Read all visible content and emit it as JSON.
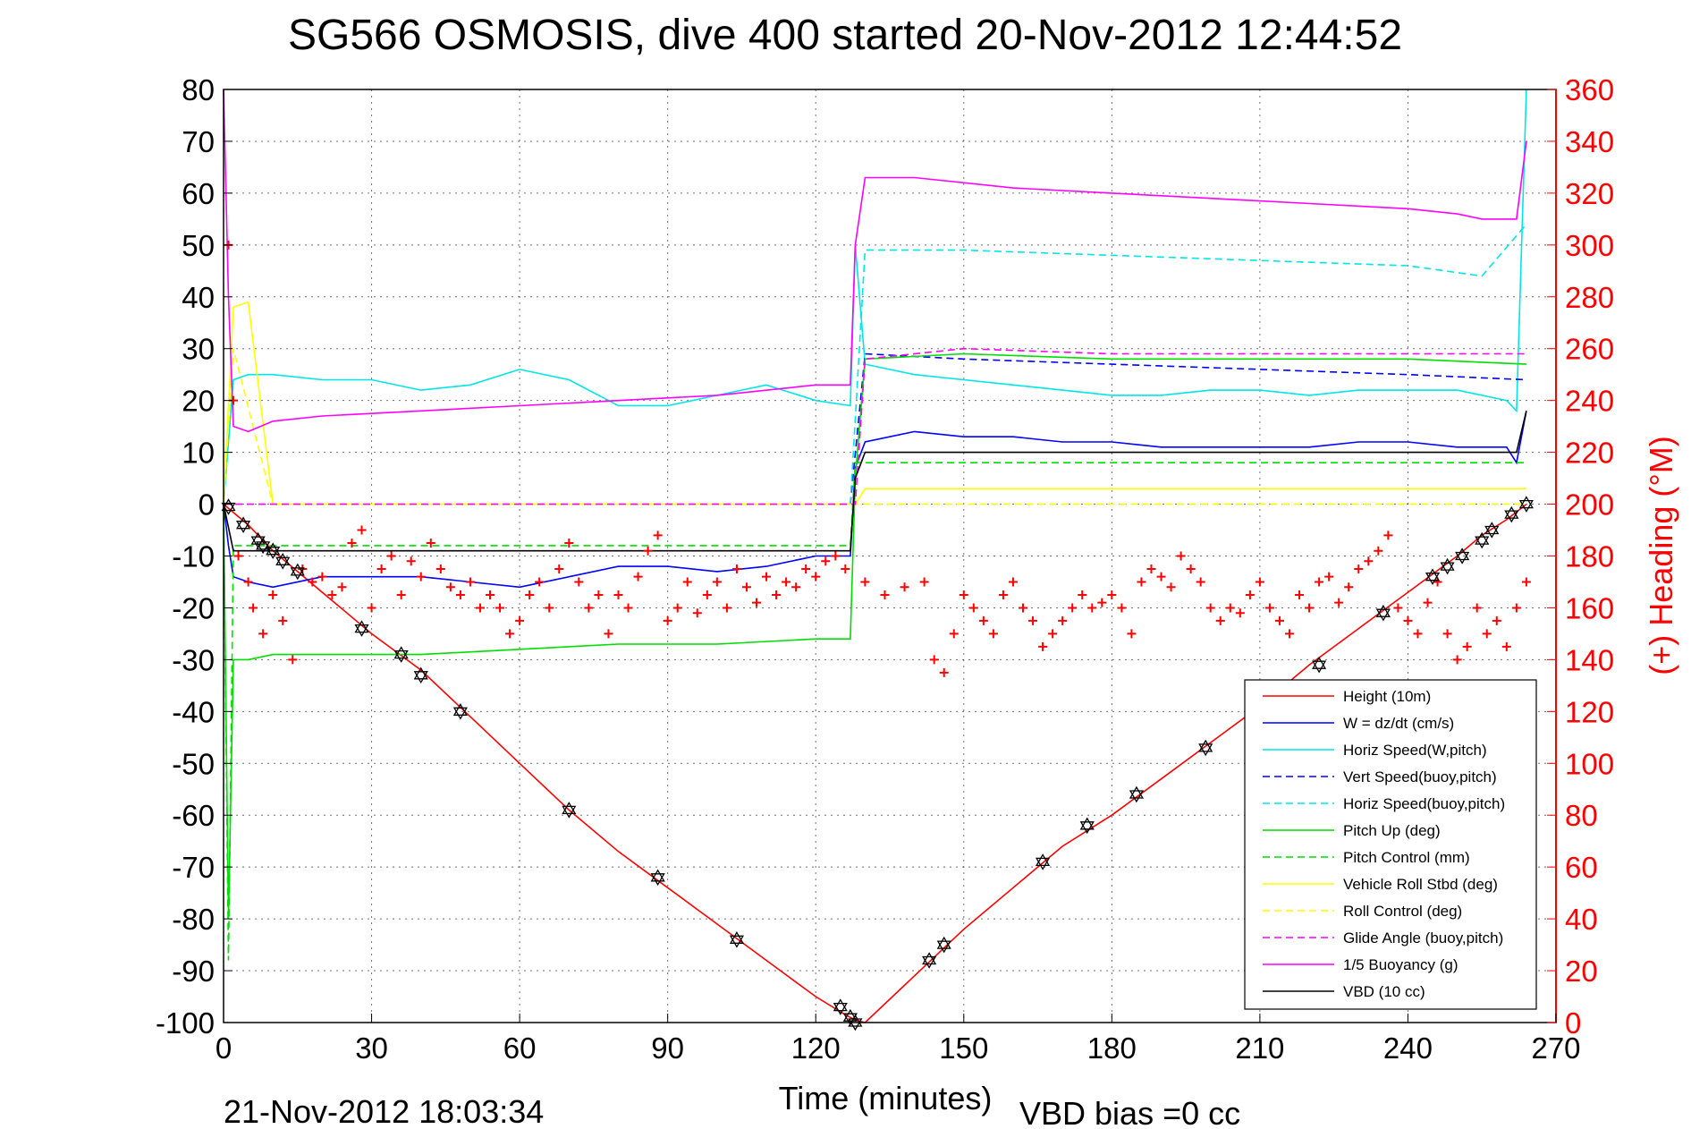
{
  "chart_data": {
    "type": "line",
    "title": "SG566 OSMOSIS, dive 400 started 20-Nov-2012 12:44:52",
    "xlabel": "Time (minutes)",
    "ylabel_right": "(+) Heading (°M)",
    "footer_left": "21-Nov-2012 18:03:34",
    "footer_right": "VBD bias =0 cc",
    "xlim": [
      0,
      270
    ],
    "ylim": [
      -100,
      80
    ],
    "ylim_right": [
      0,
      360
    ],
    "x_ticks": [
      0,
      30,
      60,
      90,
      120,
      150,
      180,
      210,
      240,
      270
    ],
    "y_ticks": [
      80,
      70,
      60,
      50,
      40,
      30,
      20,
      10,
      0,
      -10,
      -20,
      -30,
      -40,
      -50,
      -60,
      -70,
      -80,
      -90,
      -100
    ],
    "y_ticks_right": [
      360,
      340,
      320,
      300,
      280,
      260,
      240,
      220,
      200,
      180,
      160,
      140,
      120,
      100,
      80,
      60,
      40,
      20,
      0
    ],
    "grid": true,
    "legend_position": "lower-right",
    "series": [
      {
        "name": "Height (10m)",
        "color": "#ff0000",
        "style": "solid",
        "x": [
          0,
          5,
          10,
          15,
          20,
          30,
          40,
          50,
          60,
          70,
          80,
          90,
          100,
          110,
          120,
          126,
          128,
          130,
          140,
          150,
          160,
          170,
          180,
          190,
          200,
          210,
          220,
          230,
          240,
          250,
          255,
          260,
          264
        ],
        "y": [
          0,
          -4,
          -9,
          -13,
          -17,
          -25,
          -32,
          -41,
          -50,
          -59,
          -67,
          -74,
          -81,
          -88,
          -95,
          -98.5,
          -99.5,
          -100,
          -91,
          -82,
          -74,
          -66,
          -60,
          -53,
          -46,
          -39,
          -31,
          -24,
          -17,
          -10,
          -6,
          -3,
          0
        ]
      },
      {
        "name": "W = dz/dt (cm/s)",
        "color": "#0000ff",
        "style": "solid",
        "x": [
          0,
          1,
          2,
          5,
          10,
          20,
          30,
          40,
          50,
          60,
          70,
          80,
          90,
          100,
          110,
          120,
          127,
          128,
          130,
          140,
          150,
          160,
          170,
          180,
          190,
          200,
          210,
          220,
          230,
          240,
          250,
          260,
          262,
          264
        ],
        "y": [
          0,
          -8,
          -14,
          -15,
          -16,
          -14,
          -14,
          -14,
          -15,
          -16,
          -14,
          -12,
          -12,
          -13,
          -12,
          -10,
          -10,
          7,
          12,
          14,
          13,
          13,
          12,
          12,
          11,
          11,
          11,
          11,
          12,
          12,
          11,
          11,
          8,
          18
        ]
      },
      {
        "name": "Horiz Speed(W,pitch)",
        "color": "#00e5e5",
        "style": "solid",
        "x": [
          0,
          2,
          5,
          10,
          20,
          30,
          40,
          50,
          60,
          70,
          80,
          90,
          100,
          110,
          120,
          127,
          128,
          130,
          140,
          150,
          160,
          170,
          180,
          190,
          200,
          210,
          220,
          230,
          240,
          250,
          260,
          262,
          264
        ],
        "y": [
          0,
          24,
          25,
          25,
          24,
          24,
          22,
          23,
          26,
          24,
          19,
          19,
          21,
          23,
          20,
          19,
          50,
          27,
          25,
          24,
          23,
          22,
          21,
          21,
          22,
          22,
          21,
          22,
          22,
          22,
          20,
          18,
          80
        ]
      },
      {
        "name": "Vert Speed(buoy,pitch)",
        "color": "#0000ff",
        "style": "dashed",
        "x": [
          127,
          130,
          150,
          180,
          210,
          240,
          264
        ],
        "y": [
          0,
          29,
          28,
          27,
          26,
          25,
          24
        ]
      },
      {
        "name": "Horiz Speed(buoy,pitch)",
        "color": "#00e5e5",
        "style": "dashed",
        "x": [
          127,
          130,
          150,
          180,
          210,
          240,
          255,
          264
        ],
        "y": [
          0,
          49,
          49,
          48,
          47,
          46,
          44,
          54
        ]
      },
      {
        "name": "Pitch Up (deg)",
        "color": "#00dd00",
        "style": "solid",
        "x": [
          0,
          1,
          2,
          5,
          10,
          20,
          40,
          60,
          80,
          100,
          120,
          127,
          128,
          130,
          150,
          180,
          210,
          240,
          264
        ],
        "y": [
          0,
          -80,
          -30,
          -30,
          -29,
          -29,
          -29,
          -28,
          -27,
          -27,
          -26,
          -26,
          5,
          28,
          29,
          28,
          28,
          28,
          27
        ]
      },
      {
        "name": "Pitch Control (mm)",
        "color": "#00dd00",
        "style": "dashed",
        "x": [
          0,
          1,
          2,
          5,
          127,
          128,
          264
        ],
        "y": [
          0,
          -88,
          -8,
          -8,
          -8,
          8,
          8
        ]
      },
      {
        "name": "Vehicle Roll Stbd (deg)",
        "color": "#ffff00",
        "style": "solid",
        "x": [
          0,
          2,
          5,
          10,
          30,
          60,
          90,
          120,
          127,
          128,
          130,
          160,
          190,
          220,
          250,
          264
        ],
        "y": [
          0,
          38,
          39,
          0,
          0,
          0,
          0,
          0,
          0,
          0,
          3,
          3,
          3,
          3,
          3,
          3
        ]
      },
      {
        "name": "Roll Control (deg)",
        "color": "#ffff00",
        "style": "dashed",
        "x": [
          0,
          2,
          10,
          50,
          100,
          127,
          128,
          264
        ],
        "y": [
          0,
          30,
          0,
          0,
          0,
          0,
          0,
          0
        ]
      },
      {
        "name": "Glide Angle (buoy,pitch)",
        "color": "#ff00ff",
        "style": "dashed",
        "x": [
          0,
          127,
          128,
          130,
          150,
          180,
          210,
          240,
          264
        ],
        "y": [
          0,
          0,
          0,
          28,
          30,
          29,
          29,
          29,
          29
        ]
      },
      {
        "name": "1/5 Buoyancy (g)",
        "color": "#ff00ff",
        "style": "solid",
        "x": [
          0,
          1,
          2,
          5,
          10,
          20,
          40,
          60,
          80,
          100,
          120,
          127,
          128,
          130,
          140,
          160,
          180,
          200,
          220,
          240,
          250,
          255,
          262,
          264
        ],
        "y": [
          80,
          40,
          15,
          14,
          16,
          17,
          18,
          19,
          20,
          21,
          23,
          23,
          50,
          63,
          63,
          61,
          60,
          59,
          58,
          57,
          56,
          55,
          55,
          70
        ]
      },
      {
        "name": "VBD (10 cc)",
        "color": "#000000",
        "style": "solid",
        "x": [
          0,
          2,
          5,
          60,
          120,
          127,
          128,
          130,
          180,
          230,
          262,
          264
        ],
        "y": [
          0,
          -9,
          -9,
          -9,
          -9,
          -9,
          5,
          10,
          10,
          10,
          10,
          18
        ]
      }
    ],
    "heading_points": {
      "name": "(+) Heading",
      "color": "#ff0000",
      "axis": "right",
      "x": [
        1,
        2,
        3,
        5,
        6,
        8,
        10,
        12,
        14,
        16,
        18,
        20,
        22,
        24,
        26,
        28,
        30,
        32,
        34,
        36,
        38,
        40,
        42,
        44,
        46,
        48,
        50,
        52,
        54,
        56,
        58,
        60,
        62,
        64,
        66,
        68,
        70,
        72,
        74,
        76,
        78,
        80,
        82,
        84,
        86,
        88,
        90,
        92,
        94,
        96,
        98,
        100,
        102,
        104,
        106,
        108,
        110,
        112,
        114,
        116,
        118,
        120,
        122,
        124,
        126,
        130,
        134,
        138,
        142,
        144,
        146,
        148,
        150,
        152,
        154,
        156,
        158,
        160,
        162,
        164,
        166,
        168,
        170,
        172,
        174,
        176,
        178,
        180,
        182,
        184,
        186,
        188,
        190,
        192,
        194,
        196,
        198,
        200,
        202,
        204,
        206,
        208,
        210,
        212,
        214,
        216,
        218,
        220,
        222,
        224,
        226,
        228,
        230,
        232,
        234,
        236,
        238,
        240,
        242,
        244,
        246,
        248,
        250,
        252,
        254,
        256,
        258,
        260,
        262,
        264
      ],
      "y": [
        300,
        240,
        180,
        170,
        160,
        150,
        165,
        155,
        140,
        175,
        170,
        172,
        165,
        168,
        185,
        190,
        160,
        175,
        180,
        165,
        178,
        172,
        185,
        175,
        168,
        165,
        170,
        160,
        165,
        160,
        150,
        155,
        165,
        170,
        160,
        175,
        185,
        170,
        160,
        165,
        150,
        165,
        160,
        172,
        182,
        188,
        155,
        160,
        170,
        158,
        165,
        170,
        160,
        175,
        168,
        162,
        172,
        165,
        170,
        168,
        175,
        172,
        178,
        180,
        175,
        170,
        165,
        168,
        170,
        140,
        135,
        150,
        165,
        160,
        155,
        150,
        165,
        170,
        160,
        155,
        145,
        150,
        155,
        160,
        165,
        160,
        162,
        165,
        160,
        150,
        170,
        175,
        172,
        168,
        180,
        175,
        170,
        160,
        155,
        160,
        158,
        165,
        170,
        160,
        155,
        150,
        165,
        160,
        170,
        172,
        162,
        168,
        175,
        178,
        182,
        188,
        160,
        155,
        150,
        162,
        170,
        150,
        140,
        145,
        160,
        150,
        155,
        145,
        160,
        170
      ]
    },
    "dive_markers": {
      "symbol": "hexagram",
      "color": "#000000",
      "x": [
        1,
        4,
        7,
        8,
        10,
        12,
        15,
        28,
        36,
        40,
        48,
        70,
        88,
        104,
        125,
        127,
        128,
        143,
        146,
        166,
        175,
        185,
        199,
        222,
        235,
        245,
        248,
        251,
        255,
        257,
        261,
        264
      ],
      "y": [
        -0.5,
        -4,
        -7,
        -8,
        -9,
        -11,
        -13,
        -24,
        -29,
        -33,
        -40,
        -59,
        -72,
        -84,
        -97,
        -99,
        -100,
        -88,
        -85,
        -69,
        -62,
        -56,
        -47,
        -31,
        -21,
        -14,
        -12,
        -10,
        -7,
        -5,
        -2,
        0
      ]
    }
  }
}
